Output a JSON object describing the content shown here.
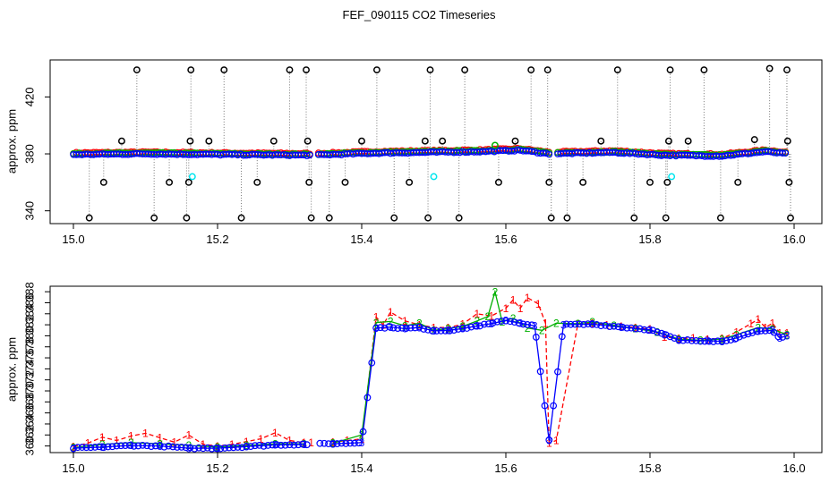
{
  "title": "FEF_090115  CO2 Timeseries",
  "chart_data": [
    {
      "id": "top",
      "type": "scatter",
      "xlabel": "",
      "ylabel": "approx. ppm",
      "xlim": [
        15.0,
        16.0
      ],
      "ylim": [
        331,
        446
      ],
      "x_ticks": [
        "15.0",
        "15.2",
        "15.4",
        "15.6",
        "15.8",
        "16.0"
      ],
      "y_ticks": [
        "340",
        "380",
        "420"
      ],
      "baseline": [
        {
          "x": 15.0,
          "y": 379.5
        },
        {
          "x": 15.1,
          "y": 380.0
        },
        {
          "x": 15.2,
          "y": 379.5
        },
        {
          "x": 15.33,
          "y": 379.0
        },
        {
          "x": 15.42,
          "y": 380.5
        },
        {
          "x": 15.56,
          "y": 381.5
        },
        {
          "x": 15.62,
          "y": 382.5
        },
        {
          "x": 15.66,
          "y": 380.0
        },
        {
          "x": 15.75,
          "y": 381.0
        },
        {
          "x": 15.82,
          "y": 379.0
        },
        {
          "x": 15.9,
          "y": 378.5
        },
        {
          "x": 15.96,
          "y": 381.5
        },
        {
          "x": 15.99,
          "y": 380.0
        }
      ],
      "spikes": [
        {
          "x": 15.022,
          "y": 335
        },
        {
          "x": 15.042,
          "y": 360
        },
        {
          "x": 15.067,
          "y": 389
        },
        {
          "x": 15.088,
          "y": 439
        },
        {
          "x": 15.112,
          "y": 335
        },
        {
          "x": 15.133,
          "y": 360
        },
        {
          "x": 15.157,
          "y": 335
        },
        {
          "x": 15.16,
          "y": 360
        },
        {
          "x": 15.162,
          "y": 389
        },
        {
          "x": 15.163,
          "y": 439
        },
        {
          "x": 15.188,
          "y": 389
        },
        {
          "x": 15.209,
          "y": 439
        },
        {
          "x": 15.233,
          "y": 335
        },
        {
          "x": 15.255,
          "y": 360
        },
        {
          "x": 15.278,
          "y": 389
        },
        {
          "x": 15.3,
          "y": 439
        },
        {
          "x": 15.323,
          "y": 439
        },
        {
          "x": 15.325,
          "y": 389
        },
        {
          "x": 15.327,
          "y": 360
        },
        {
          "x": 15.33,
          "y": 335
        },
        {
          "x": 15.355,
          "y": 335
        },
        {
          "x": 15.377,
          "y": 360
        },
        {
          "x": 15.4,
          "y": 389
        },
        {
          "x": 15.421,
          "y": 439
        },
        {
          "x": 15.445,
          "y": 335
        },
        {
          "x": 15.466,
          "y": 360
        },
        {
          "x": 15.488,
          "y": 389
        },
        {
          "x": 15.492,
          "y": 335
        },
        {
          "x": 15.495,
          "y": 439
        },
        {
          "x": 15.512,
          "y": 389
        },
        {
          "x": 15.535,
          "y": 335
        },
        {
          "x": 15.543,
          "y": 439
        },
        {
          "x": 15.59,
          "y": 360
        },
        {
          "x": 15.613,
          "y": 389
        },
        {
          "x": 15.635,
          "y": 439
        },
        {
          "x": 15.658,
          "y": 439
        },
        {
          "x": 15.66,
          "y": 360
        },
        {
          "x": 15.663,
          "y": 335
        },
        {
          "x": 15.685,
          "y": 335
        },
        {
          "x": 15.707,
          "y": 360
        },
        {
          "x": 15.732,
          "y": 389
        },
        {
          "x": 15.755,
          "y": 439
        },
        {
          "x": 15.778,
          "y": 335
        },
        {
          "x": 15.8,
          "y": 360
        },
        {
          "x": 15.822,
          "y": 335
        },
        {
          "x": 15.824,
          "y": 360
        },
        {
          "x": 15.826,
          "y": 389
        },
        {
          "x": 15.828,
          "y": 439
        },
        {
          "x": 15.853,
          "y": 389
        },
        {
          "x": 15.875,
          "y": 439
        },
        {
          "x": 15.898,
          "y": 335
        },
        {
          "x": 15.922,
          "y": 360
        },
        {
          "x": 15.945,
          "y": 390
        },
        {
          "x": 15.966,
          "y": 440
        },
        {
          "x": 15.99,
          "y": 439
        },
        {
          "x": 15.991,
          "y": 389
        },
        {
          "x": 15.993,
          "y": 360
        },
        {
          "x": 15.995,
          "y": 335
        }
      ],
      "cyan_points": [
        {
          "x": 15.165,
          "y": 364
        },
        {
          "x": 15.5,
          "y": 364
        },
        {
          "x": 15.83,
          "y": 364
        }
      ],
      "green_points": [
        {
          "x": 15.585,
          "y": 386
        }
      ],
      "colors": {
        "spike": "#000000",
        "series1": "#ff0000",
        "series2": "#00b000",
        "series3": "#0000ff",
        "cyan": "#00e5ee"
      }
    },
    {
      "id": "bottom",
      "type": "line",
      "xlabel": "",
      "ylabel": "approx. ppm",
      "xlim": [
        15.0,
        16.0
      ],
      "ylim": [
        358.8,
        389
      ],
      "x_ticks": [
        "15.0",
        "15.2",
        "15.4",
        "15.6",
        "15.8",
        "16.0"
      ],
      "y_ticks": [
        "360",
        "362",
        "364",
        "366",
        "368",
        "370",
        "372",
        "374",
        "376",
        "378",
        "380",
        "382",
        "384",
        "386",
        "388"
      ],
      "point_labels": [
        "1",
        "2",
        "3"
      ],
      "series": [
        {
          "name": "1",
          "color": "#ff0000",
          "style": "dashed",
          "points": [
            {
              "x": 15.0,
              "y": 359.9
            },
            {
              "x": 15.02,
              "y": 360.5
            },
            {
              "x": 15.04,
              "y": 361.6
            },
            {
              "x": 15.06,
              "y": 361.0
            },
            {
              "x": 15.08,
              "y": 361.8
            },
            {
              "x": 15.1,
              "y": 362.3
            },
            {
              "x": 15.12,
              "y": 361.5
            },
            {
              "x": 15.14,
              "y": 360.7
            },
            {
              "x": 15.16,
              "y": 362.0
            },
            {
              "x": 15.18,
              "y": 360.3
            },
            {
              "x": 15.2,
              "y": 360.0
            },
            {
              "x": 15.22,
              "y": 360.3
            },
            {
              "x": 15.24,
              "y": 360.8
            },
            {
              "x": 15.26,
              "y": 361.3
            },
            {
              "x": 15.28,
              "y": 362.4
            },
            {
              "x": 15.3,
              "y": 361.0
            },
            {
              "x": 15.32,
              "y": 360.6
            },
            {
              "x": 15.33,
              "y": 360.6
            },
            {
              "x": 15.36,
              "y": 360.7
            },
            {
              "x": 15.38,
              "y": 361.0
            },
            {
              "x": 15.4,
              "y": 361.3
            },
            {
              "x": 15.42,
              "y": 383.4
            },
            {
              "x": 15.43,
              "y": 382.0
            },
            {
              "x": 15.44,
              "y": 384.3
            },
            {
              "x": 15.46,
              "y": 382.7
            },
            {
              "x": 15.48,
              "y": 382.0
            },
            {
              "x": 15.5,
              "y": 381.5
            },
            {
              "x": 15.52,
              "y": 381.5
            },
            {
              "x": 15.54,
              "y": 382.1
            },
            {
              "x": 15.56,
              "y": 384.0
            },
            {
              "x": 15.58,
              "y": 383.6
            },
            {
              "x": 15.6,
              "y": 385.0
            },
            {
              "x": 15.61,
              "y": 386.5
            },
            {
              "x": 15.62,
              "y": 385.0
            },
            {
              "x": 15.63,
              "y": 386.9
            },
            {
              "x": 15.645,
              "y": 385.8
            },
            {
              "x": 15.655,
              "y": 382.3
            },
            {
              "x": 15.66,
              "y": 360.5
            },
            {
              "x": 15.67,
              "y": 361.0
            },
            {
              "x": 15.7,
              "y": 382.2
            },
            {
              "x": 15.72,
              "y": 382.3
            },
            {
              "x": 15.74,
              "y": 382.0
            },
            {
              "x": 15.76,
              "y": 381.7
            },
            {
              "x": 15.78,
              "y": 381.5
            },
            {
              "x": 15.8,
              "y": 381.2
            },
            {
              "x": 15.82,
              "y": 379.8
            },
            {
              "x": 15.84,
              "y": 379.5
            },
            {
              "x": 15.86,
              "y": 379.6
            },
            {
              "x": 15.88,
              "y": 379.4
            },
            {
              "x": 15.9,
              "y": 379.5
            },
            {
              "x": 15.92,
              "y": 380.7
            },
            {
              "x": 15.94,
              "y": 382.2
            },
            {
              "x": 15.95,
              "y": 383.0
            },
            {
              "x": 15.96,
              "y": 381.5
            },
            {
              "x": 15.97,
              "y": 382.3
            },
            {
              "x": 15.98,
              "y": 380.5
            },
            {
              "x": 15.99,
              "y": 380.5
            }
          ]
        },
        {
          "name": "2",
          "color": "#00b000",
          "style": "solid",
          "points": [
            {
              "x": 15.0,
              "y": 359.7
            },
            {
              "x": 15.04,
              "y": 360.3
            },
            {
              "x": 15.08,
              "y": 360.6
            },
            {
              "x": 15.12,
              "y": 360.4
            },
            {
              "x": 15.16,
              "y": 360.1
            },
            {
              "x": 15.2,
              "y": 359.8
            },
            {
              "x": 15.24,
              "y": 360.1
            },
            {
              "x": 15.28,
              "y": 360.4
            },
            {
              "x": 15.32,
              "y": 360.4
            },
            {
              "x": 15.36,
              "y": 360.5
            },
            {
              "x": 15.4,
              "y": 362.0
            },
            {
              "x": 15.42,
              "y": 382.4
            },
            {
              "x": 15.44,
              "y": 382.6
            },
            {
              "x": 15.46,
              "y": 381.8
            },
            {
              "x": 15.48,
              "y": 382.3
            },
            {
              "x": 15.5,
              "y": 381.0
            },
            {
              "x": 15.52,
              "y": 381.3
            },
            {
              "x": 15.54,
              "y": 381.7
            },
            {
              "x": 15.56,
              "y": 382.7
            },
            {
              "x": 15.575,
              "y": 383.5
            },
            {
              "x": 15.585,
              "y": 388.0
            },
            {
              "x": 15.595,
              "y": 382.5
            },
            {
              "x": 15.61,
              "y": 383.2
            },
            {
              "x": 15.63,
              "y": 381.4
            },
            {
              "x": 15.65,
              "y": 381.0
            },
            {
              "x": 15.67,
              "y": 382.3
            },
            {
              "x": 15.7,
              "y": 382.2
            },
            {
              "x": 15.72,
              "y": 382.5
            },
            {
              "x": 15.75,
              "y": 381.9
            },
            {
              "x": 15.78,
              "y": 381.3
            },
            {
              "x": 15.81,
              "y": 380.7
            },
            {
              "x": 15.84,
              "y": 379.4
            },
            {
              "x": 15.87,
              "y": 379.2
            },
            {
              "x": 15.9,
              "y": 379.4
            },
            {
              "x": 15.92,
              "y": 380.2
            },
            {
              "x": 15.95,
              "y": 381.5
            },
            {
              "x": 15.97,
              "y": 381.2
            },
            {
              "x": 15.99,
              "y": 380.2
            }
          ]
        },
        {
          "name": "3",
          "color": "#0000ff",
          "style": "solid",
          "points": [
            {
              "x": 15.0,
              "y": 359.6
            },
            {
              "x": 15.04,
              "y": 359.8
            },
            {
              "x": 15.08,
              "y": 360.1
            },
            {
              "x": 15.12,
              "y": 360.0
            },
            {
              "x": 15.16,
              "y": 359.6
            },
            {
              "x": 15.2,
              "y": 359.6
            },
            {
              "x": 15.24,
              "y": 359.9
            },
            {
              "x": 15.28,
              "y": 360.2
            },
            {
              "x": 15.32,
              "y": 360.3
            },
            {
              "x": 15.36,
              "y": 360.4
            },
            {
              "x": 15.4,
              "y": 360.6
            },
            {
              "x": 15.42,
              "y": 381.4
            },
            {
              "x": 15.44,
              "y": 381.6
            },
            {
              "x": 15.46,
              "y": 381.3
            },
            {
              "x": 15.48,
              "y": 381.5
            },
            {
              "x": 15.5,
              "y": 380.9
            },
            {
              "x": 15.52,
              "y": 381.0
            },
            {
              "x": 15.54,
              "y": 381.3
            },
            {
              "x": 15.56,
              "y": 381.8
            },
            {
              "x": 15.58,
              "y": 382.2
            },
            {
              "x": 15.6,
              "y": 382.8
            },
            {
              "x": 15.62,
              "y": 382.3
            },
            {
              "x": 15.64,
              "y": 381.8
            },
            {
              "x": 15.66,
              "y": 361.0
            },
            {
              "x": 15.68,
              "y": 382.0
            },
            {
              "x": 15.72,
              "y": 382.1
            },
            {
              "x": 15.76,
              "y": 381.6
            },
            {
              "x": 15.8,
              "y": 381.1
            },
            {
              "x": 15.82,
              "y": 380.2
            },
            {
              "x": 15.84,
              "y": 379.2
            },
            {
              "x": 15.88,
              "y": 379.1
            },
            {
              "x": 15.9,
              "y": 379.0
            },
            {
              "x": 15.92,
              "y": 379.6
            },
            {
              "x": 15.95,
              "y": 380.8
            },
            {
              "x": 15.97,
              "y": 381.0
            },
            {
              "x": 15.98,
              "y": 379.6
            },
            {
              "x": 15.99,
              "y": 380.0
            }
          ]
        }
      ]
    }
  ]
}
